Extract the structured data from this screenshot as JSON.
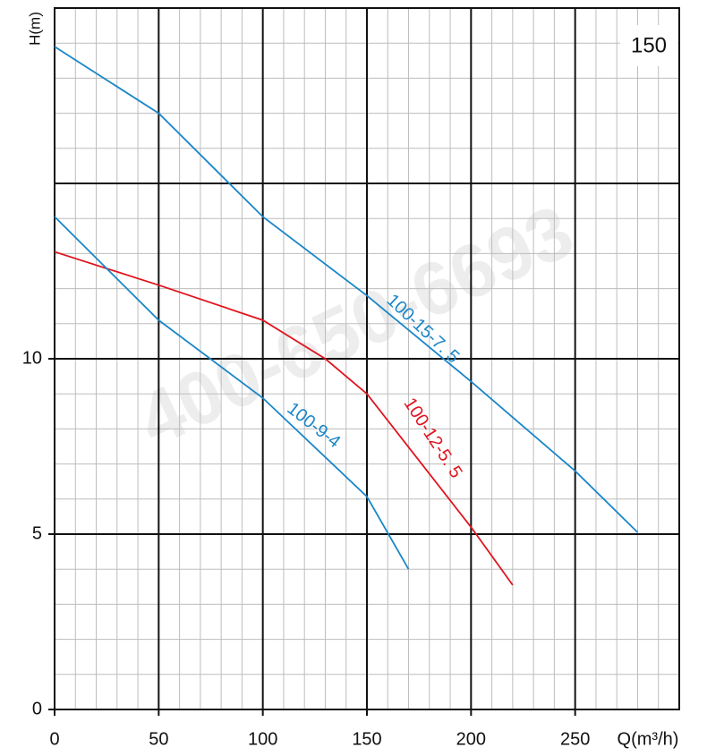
{
  "chart_data": {
    "type": "line",
    "y_label": "H(m)",
    "x_label": "Q(m³/h)",
    "box_label": "150",
    "watermark": "400-650-6693",
    "xlim": [
      0,
      300
    ],
    "xticks": [
      0,
      50,
      100,
      150,
      200,
      250
    ],
    "ylim": [
      0,
      20
    ],
    "yticks": [
      0,
      5,
      10
    ],
    "major_grid": {
      "x": 50,
      "y": 5
    },
    "minor_grid": {
      "x": 10,
      "y": 1
    },
    "series": [
      {
        "name": "100-15-7. 5",
        "color": "#1a86c8",
        "x": [
          0,
          50,
          100,
          150,
          200,
          250,
          280
        ],
        "values": [
          18.9,
          17.0,
          14.05,
          11.8,
          9.35,
          6.8,
          5.05
        ]
      },
      {
        "name": "100-12-5. 5",
        "color": "#e0141e",
        "x": [
          0,
          50,
          100,
          130,
          150,
          200,
          220
        ],
        "values": [
          13.05,
          12.1,
          11.1,
          10.0,
          9.0,
          5.2,
          3.55
        ]
      },
      {
        "name": "100-9-4",
        "color": "#1a86c8",
        "x": [
          0,
          50,
          100,
          150,
          170
        ],
        "values": [
          14.05,
          11.1,
          8.88,
          6.07,
          4.0
        ]
      }
    ]
  }
}
